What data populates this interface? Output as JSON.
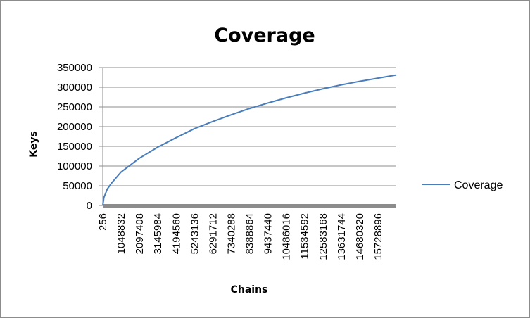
{
  "chart_data": {
    "type": "line",
    "title": "Coverage",
    "xlabel": "Chains",
    "ylabel": "Keys",
    "x_tick_labels": [
      "256",
      "1048832",
      "2097408",
      "3145984",
      "4194560",
      "5243136",
      "6291712",
      "7340288",
      "8388864",
      "9437440",
      "10486016",
      "11534592",
      "12583168",
      "13631744",
      "14680320",
      "15728896"
    ],
    "y_tick_labels": [
      "0",
      "50000",
      "100000",
      "150000",
      "200000",
      "250000",
      "300000",
      "350000"
    ],
    "ylim": [
      0,
      350000
    ],
    "xlim": [
      256,
      16777216
    ],
    "grid": true,
    "legend_position": "right",
    "series": [
      {
        "name": "Coverage",
        "color": "#4a7ebb",
        "x": [
          256,
          65536,
          262144,
          524288,
          1048832,
          2097408,
          3145984,
          4194560,
          5243136,
          6291712,
          7340288,
          8388864,
          9437440,
          10486016,
          11534592,
          12583168,
          13631744,
          14680320,
          15728896,
          16777216
        ],
        "values": [
          0,
          20000,
          42000,
          58000,
          85000,
          120000,
          148000,
          172000,
          195000,
          213000,
          230000,
          246000,
          260000,
          273000,
          285000,
          296000,
          306000,
          315000,
          323000,
          331000
        ]
      }
    ]
  }
}
